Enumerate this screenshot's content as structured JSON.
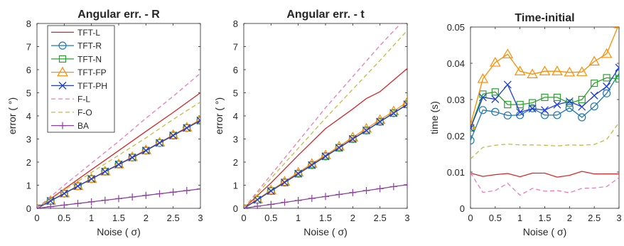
{
  "chart_data": [
    {
      "type": "line",
      "title": "Angular err. - R",
      "xlabel": "Noise ( σ)",
      "ylabel": "error ( °)",
      "xlim": [
        0,
        3
      ],
      "ylim": [
        0,
        8
      ],
      "x_ticks": [
        "0",
        "0.5",
        "1",
        "1.5",
        "2",
        "2.5",
        "3"
      ],
      "y_ticks": [
        "0",
        "1",
        "2",
        "3",
        "4",
        "5",
        "6",
        "7",
        "8"
      ],
      "legend": "top-left",
      "series": [
        {
          "name": "TFT-L",
          "x": [
            0,
            0.5,
            1,
            1.5,
            2,
            2.5,
            3
          ],
          "values": [
            0,
            0.83,
            1.67,
            2.5,
            3.33,
            4.15,
            5.0
          ]
        },
        {
          "name": "TFT-R",
          "x": [
            0,
            0.25,
            0.5,
            0.75,
            1,
            1.25,
            1.5,
            1.75,
            2,
            2.25,
            2.5,
            2.75,
            3
          ],
          "values": [
            0,
            0.32,
            0.64,
            0.96,
            1.27,
            1.59,
            1.9,
            2.2,
            2.5,
            2.83,
            3.15,
            3.48,
            3.8
          ]
        },
        {
          "name": "TFT-N",
          "x": [
            0,
            0.25,
            0.5,
            0.75,
            1,
            1.25,
            1.5,
            1.75,
            2,
            2.25,
            2.5,
            2.75,
            3
          ],
          "values": [
            0,
            0.32,
            0.64,
            0.96,
            1.27,
            1.59,
            1.9,
            2.2,
            2.5,
            2.83,
            3.15,
            3.48,
            3.8
          ]
        },
        {
          "name": "TFT-FP",
          "x": [
            0,
            0.25,
            0.5,
            0.75,
            1,
            1.25,
            1.5,
            1.75,
            2,
            2.25,
            2.5,
            2.75,
            3
          ],
          "values": [
            0,
            0.33,
            0.65,
            0.97,
            1.28,
            1.6,
            1.91,
            2.22,
            2.52,
            2.85,
            3.18,
            3.5,
            3.85
          ]
        },
        {
          "name": "TFT-PH",
          "x": [
            0,
            0.25,
            0.5,
            0.75,
            1,
            1.25,
            1.5,
            1.75,
            2,
            2.25,
            2.5,
            2.75,
            3
          ],
          "values": [
            0,
            0.32,
            0.64,
            0.96,
            1.27,
            1.59,
            1.9,
            2.2,
            2.5,
            2.83,
            3.15,
            3.48,
            3.8
          ]
        },
        {
          "name": "F-L",
          "x": [
            0,
            0.5,
            1,
            1.5,
            2,
            2.5,
            3
          ],
          "values": [
            0,
            1.0,
            1.95,
            2.9,
            3.9,
            4.85,
            5.85
          ]
        },
        {
          "name": "F-O",
          "x": [
            0,
            0.5,
            1,
            1.5,
            2,
            2.5,
            3
          ],
          "values": [
            0,
            0.78,
            1.55,
            2.3,
            3.05,
            3.85,
            4.6
          ]
        },
        {
          "name": "BA",
          "x": [
            0,
            0.25,
            0.5,
            0.75,
            1,
            1.25,
            1.5,
            1.75,
            2,
            2.25,
            2.5,
            2.75,
            3
          ],
          "values": [
            0,
            0.07,
            0.14,
            0.21,
            0.28,
            0.35,
            0.42,
            0.49,
            0.56,
            0.63,
            0.7,
            0.77,
            0.84
          ]
        }
      ]
    },
    {
      "type": "line",
      "title": "Angular err. - t",
      "xlabel": "Noise ( σ)",
      "ylabel": "error ( °)",
      "xlim": [
        0,
        3
      ],
      "ylim": [
        0,
        8
      ],
      "x_ticks": [
        "0",
        "0.5",
        "1",
        "1.5",
        "2",
        "2.5",
        "3"
      ],
      "y_ticks": [
        "0",
        "1",
        "2",
        "3",
        "4",
        "5",
        "6",
        "7",
        "8"
      ],
      "series": [
        {
          "name": "TFT-L",
          "x": [
            0,
            0.5,
            1,
            1.5,
            2,
            2.25,
            2.5,
            3
          ],
          "values": [
            0,
            1.1,
            2.3,
            3.45,
            4.3,
            4.75,
            5.05,
            6.05
          ]
        },
        {
          "name": "TFT-R",
          "x": [
            0,
            0.25,
            0.5,
            0.75,
            1,
            1.25,
            1.5,
            1.75,
            2,
            2.25,
            2.5,
            2.75,
            3
          ],
          "values": [
            0,
            0.37,
            0.75,
            1.12,
            1.5,
            1.87,
            2.25,
            2.62,
            3.0,
            3.37,
            3.75,
            4.12,
            4.5
          ]
        },
        {
          "name": "TFT-N",
          "x": [
            0,
            0.25,
            0.5,
            0.75,
            1,
            1.25,
            1.5,
            1.75,
            2,
            2.25,
            2.5,
            2.75,
            3
          ],
          "values": [
            0,
            0.37,
            0.75,
            1.12,
            1.5,
            1.87,
            2.25,
            2.62,
            3.0,
            3.37,
            3.75,
            4.12,
            4.5
          ]
        },
        {
          "name": "TFT-FP",
          "x": [
            0,
            0.25,
            0.5,
            0.75,
            1,
            1.25,
            1.5,
            1.75,
            2,
            2.25,
            2.5,
            2.75,
            3
          ],
          "values": [
            0,
            0.39,
            0.78,
            1.16,
            1.55,
            1.93,
            2.3,
            2.68,
            3.07,
            3.45,
            3.83,
            4.2,
            4.6
          ]
        },
        {
          "name": "TFT-PH",
          "x": [
            0,
            0.25,
            0.5,
            0.75,
            1,
            1.25,
            1.5,
            1.75,
            2,
            2.25,
            2.5,
            2.75,
            3
          ],
          "values": [
            0,
            0.37,
            0.75,
            1.12,
            1.5,
            1.87,
            2.25,
            2.62,
            3.0,
            3.37,
            3.75,
            4.12,
            4.5
          ]
        },
        {
          "name": "F-L",
          "x": [
            0,
            0.5,
            1,
            1.5,
            2,
            2.5,
            3
          ],
          "values": [
            0,
            1.45,
            2.9,
            4.35,
            5.7,
            7.05,
            8.3
          ]
        },
        {
          "name": "F-O",
          "x": [
            0,
            0.5,
            1,
            1.5,
            2,
            2.5,
            3
          ],
          "values": [
            0,
            1.3,
            2.6,
            3.9,
            5.15,
            6.4,
            7.7
          ]
        },
        {
          "name": "BA",
          "x": [
            0,
            0.25,
            0.5,
            0.75,
            1,
            1.25,
            1.5,
            1.75,
            2,
            2.25,
            2.5,
            2.75,
            3
          ],
          "values": [
            0,
            0.09,
            0.17,
            0.26,
            0.34,
            0.43,
            0.51,
            0.6,
            0.68,
            0.77,
            0.85,
            0.94,
            1.02
          ]
        }
      ]
    },
    {
      "type": "line",
      "title": "Time-initial",
      "xlabel": "Noise ( σ)",
      "ylabel": "time (s)",
      "xlim": [
        0,
        3
      ],
      "ylim": [
        0,
        0.05
      ],
      "x_ticks": [
        "0",
        "0.5",
        "1",
        "1.5",
        "2",
        "2.5",
        "3"
      ],
      "y_ticks": [
        "0",
        "0.01",
        "0.02",
        "0.03",
        "0.04",
        "0.05"
      ],
      "series": [
        {
          "name": "TFT-L",
          "x": [
            0,
            0.25,
            0.5,
            0.75,
            1,
            1.25,
            1.5,
            1.75,
            2,
            2.25,
            2.5,
            2.75,
            3
          ],
          "values": [
            0.0097,
            0.0088,
            0.0093,
            0.0096,
            0.0087,
            0.0097,
            0.0097,
            0.0086,
            0.0091,
            0.0102,
            0.0095,
            0.0095,
            0.0095
          ]
        },
        {
          "name": "TFT-R",
          "x": [
            0,
            0.25,
            0.5,
            0.75,
            1,
            1.25,
            1.5,
            1.75,
            2,
            2.25,
            2.5,
            2.75,
            3
          ],
          "values": [
            0.0187,
            0.0271,
            0.0266,
            0.0256,
            0.0257,
            0.0276,
            0.0257,
            0.0257,
            0.0277,
            0.0251,
            0.0281,
            0.0317,
            0.0372
          ]
        },
        {
          "name": "TFT-N",
          "x": [
            0,
            0.25,
            0.5,
            0.75,
            1,
            1.25,
            1.5,
            1.75,
            2,
            2.25,
            2.5,
            2.75,
            3
          ],
          "values": [
            0.0222,
            0.0315,
            0.0321,
            0.0286,
            0.0286,
            0.0291,
            0.0306,
            0.0306,
            0.029,
            0.03,
            0.0345,
            0.036,
            0.0357
          ]
        },
        {
          "name": "TFT-FP",
          "x": [
            0,
            0.25,
            0.5,
            0.75,
            1,
            1.25,
            1.5,
            1.75,
            2,
            2.25,
            2.5,
            2.75,
            3
          ],
          "values": [
            0.0231,
            0.0357,
            0.0402,
            0.0425,
            0.0378,
            0.037,
            0.0378,
            0.0378,
            0.0375,
            0.0376,
            0.0405,
            0.0426,
            0.0508
          ]
        },
        {
          "name": "TFT-PH",
          "x": [
            0,
            0.25,
            0.5,
            0.75,
            1,
            1.25,
            1.5,
            1.75,
            2,
            2.25,
            2.5,
            2.75,
            3
          ],
          "values": [
            0.0221,
            0.0306,
            0.0301,
            0.0341,
            0.0265,
            0.0275,
            0.0271,
            0.0286,
            0.0295,
            0.028,
            0.0311,
            0.0336,
            0.0388
          ]
        },
        {
          "name": "F-L",
          "x": [
            0,
            0.25,
            0.5,
            0.75,
            1,
            1.25,
            1.5,
            1.75,
            2,
            2.25,
            2.5,
            2.75,
            3
          ],
          "values": [
            0.0098,
            0.0044,
            0.0049,
            0.0069,
            0.0036,
            0.0055,
            0.0047,
            0.0049,
            0.0043,
            0.0055,
            0.0056,
            0.006,
            0.0085
          ]
        },
        {
          "name": "F-O",
          "x": [
            0,
            0.25,
            0.5,
            0.75,
            1,
            1.25,
            1.5,
            1.75,
            2,
            2.25,
            2.5,
            2.75,
            3
          ],
          "values": [
            0.0136,
            0.0168,
            0.0174,
            0.0177,
            0.0175,
            0.0175,
            0.0174,
            0.0172,
            0.0175,
            0.0174,
            0.0176,
            0.019,
            0.0236
          ]
        }
      ]
    }
  ],
  "styles": {
    "TFT-L": {
      "color": "#d62728",
      "dash": "",
      "marker": "none"
    },
    "TFT-R": {
      "color": "#1f77b4",
      "dash": "",
      "marker": "circle"
    },
    "TFT-N": {
      "color": "#2ca02c",
      "dash": "",
      "marker": "square"
    },
    "TFT-FP": {
      "color": "#ff8c00",
      "dash": "",
      "marker": "triangle"
    },
    "TFT-PH": {
      "color": "#1f3fd6",
      "dash": "",
      "marker": "x"
    },
    "F-L": {
      "color": "#f07ab4",
      "dash": "6,4",
      "marker": "none"
    },
    "F-O": {
      "color": "#bfbf3f",
      "dash": "6,4",
      "marker": "none"
    },
    "BA": {
      "color": "#8e3fa0",
      "dash": "",
      "marker": "plus"
    }
  }
}
